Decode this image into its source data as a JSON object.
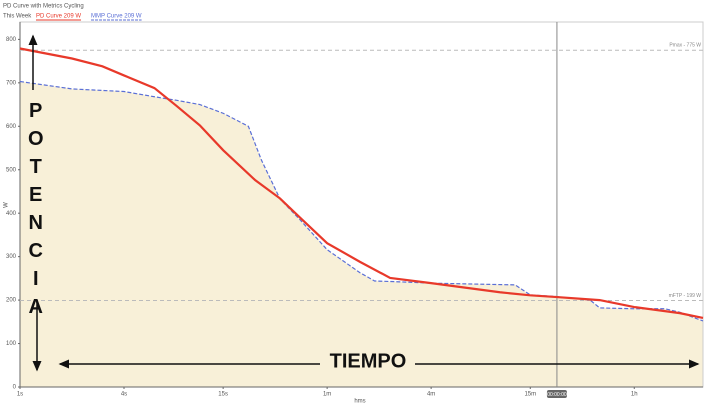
{
  "chart_data": {
    "type": "line",
    "title": "PD Curve with Metrics Cycling",
    "subtitle": "This Week",
    "x_label": "hms",
    "y_label": "W",
    "x_log": true,
    "xlim": [
      1,
      9000
    ],
    "ylim": [
      0,
      840
    ],
    "xticks": [
      {
        "value": 1,
        "label": "1s"
      },
      {
        "value": 4,
        "label": "4s"
      },
      {
        "value": 15,
        "label": "15s"
      },
      {
        "value": 60,
        "label": "1m"
      },
      {
        "value": 240,
        "label": "4m"
      },
      {
        "value": 900,
        "label": "15m"
      },
      {
        "value": 3600,
        "label": "1h"
      }
    ],
    "yticks": [
      0,
      100,
      200,
      300,
      400,
      500,
      600,
      700,
      800
    ],
    "series": [
      {
        "name": "PD Curve  209 W",
        "color": "#e8392a",
        "dashed": false,
        "fill": null,
        "x": [
          1,
          2,
          3,
          4,
          6,
          8,
          11,
          15,
          23,
          32,
          42,
          60,
          93,
          139,
          240,
          600,
          900,
          1284,
          2270,
          3600,
          6600,
          9000
        ],
        "values": [
          779,
          756,
          738,
          717,
          688,
          648,
          602,
          545,
          476,
          434,
          389,
          331,
          288,
          251,
          239,
          218,
          211,
          207,
          200,
          184,
          170,
          159
        ]
      },
      {
        "name": "MMP Curve  209 W",
        "color": "#5a6fd6",
        "dashed": true,
        "fill": "#f8f0d8",
        "x": [
          1,
          2,
          4,
          6,
          8,
          11,
          15,
          21,
          25,
          32,
          42,
          60,
          93,
          113,
          158,
          240,
          735,
          900,
          1284,
          2000,
          2270,
          3600,
          5430,
          6600,
          9000
        ],
        "values": [
          703,
          686,
          680,
          668,
          660,
          650,
          630,
          600,
          522,
          433,
          384,
          316,
          263,
          244,
          242,
          239,
          235,
          212,
          208,
          200,
          182,
          180,
          180,
          172,
          152
        ]
      }
    ],
    "reference_lines": [
      {
        "label": "Pmax - 775 W",
        "value": 775
      },
      {
        "label": "mFTP - 199 W",
        "value": 199
      }
    ],
    "cursor": {
      "value": 1284,
      "label": "00:00:00"
    },
    "annotations": {
      "vertical": "POTENCIA",
      "horizontal": "TIEMPO"
    }
  }
}
